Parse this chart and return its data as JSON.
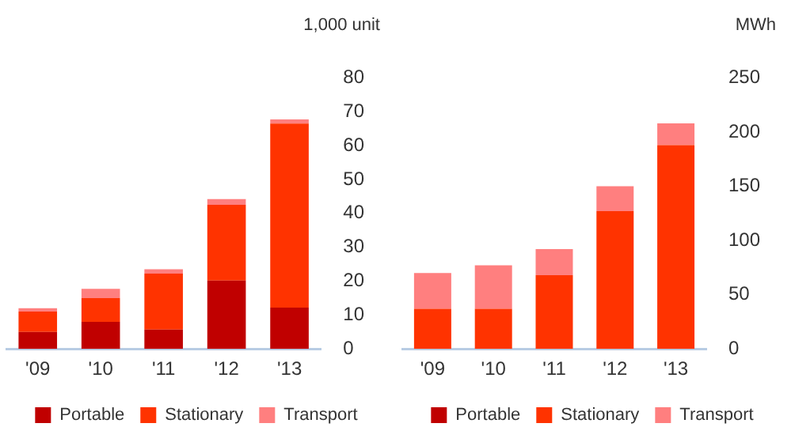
{
  "chart_data": [
    {
      "type": "bar",
      "ylabel": "1,000 unit",
      "categories": [
        "'09",
        "'10",
        "'11",
        "'12",
        "'13"
      ],
      "stacked": true,
      "series": [
        {
          "name": "Portable",
          "color": "#c00000",
          "values": [
            5,
            8,
            5.7,
            20.2,
            12.2
          ]
        },
        {
          "name": "Stationary",
          "color": "#ff3300",
          "values": [
            6,
            7,
            16.5,
            22.3,
            54.3
          ]
        },
        {
          "name": "Transport",
          "color": "#ff7f7f",
          "values": [
            1,
            2.7,
            1.3,
            1.7,
            1.2
          ]
        }
      ],
      "ylim": [
        0,
        80
      ],
      "yticks": [
        0,
        10,
        20,
        30,
        40,
        50,
        60,
        70,
        80
      ],
      "grid": false,
      "legend": "bottom"
    },
    {
      "type": "bar",
      "ylabel": "MWh",
      "categories": [
        "'09",
        "'10",
        "'11",
        "'12",
        "'13"
      ],
      "stacked": true,
      "series": [
        {
          "name": "Portable",
          "color": "#c00000",
          "values": [
            0,
            0,
            0,
            0,
            0
          ]
        },
        {
          "name": "Stationary",
          "color": "#ff3300",
          "values": [
            37,
            37,
            68,
            127,
            188
          ]
        },
        {
          "name": "Transport",
          "color": "#ff7f7f",
          "values": [
            33,
            40,
            24,
            23,
            20
          ]
        }
      ],
      "ylim": [
        0,
        250
      ],
      "yticks": [
        0,
        50,
        100,
        150,
        200,
        250
      ],
      "grid": false,
      "legend": "bottom"
    }
  ]
}
